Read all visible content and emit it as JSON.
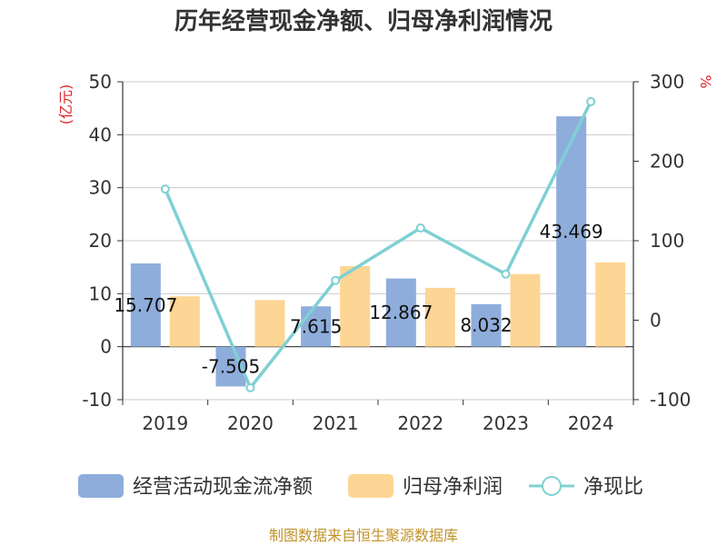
{
  "chart_data": {
    "type": "bar",
    "title": "历年经营现金净额、归母净利润情况",
    "categories": [
      "2019",
      "2020",
      "2021",
      "2022",
      "2023",
      "2024"
    ],
    "y_left": {
      "unit": "(亿元)",
      "min": -10,
      "max": 50,
      "ticks": [
        -10,
        0,
        10,
        20,
        30,
        40,
        50
      ]
    },
    "y_right": {
      "unit": "%",
      "min": -100,
      "max": 300,
      "ticks": [
        -100,
        0,
        100,
        200,
        300
      ]
    },
    "series": [
      {
        "name": "经营活动现金流净额",
        "type": "bar",
        "axis": "left",
        "color": "#8eaddb",
        "values": [
          15.707,
          -7.505,
          7.615,
          12.867,
          8.032,
          43.469
        ],
        "labels": [
          "15.707",
          "-7.505",
          "7.615",
          "12.867",
          "8.032",
          "43.469"
        ]
      },
      {
        "name": "归母净利润",
        "type": "bar",
        "axis": "left",
        "color": "#fdd594",
        "values": [
          9.5,
          8.8,
          15.2,
          11.1,
          13.7,
          15.9
        ]
      },
      {
        "name": "净现比",
        "type": "line",
        "axis": "right",
        "color": "#7fd0d4",
        "values": [
          165,
          -85,
          50,
          116,
          58,
          275
        ]
      }
    ],
    "legend_position": "bottom",
    "grid": true
  },
  "source": "制图数据来自恒生聚源数据库"
}
